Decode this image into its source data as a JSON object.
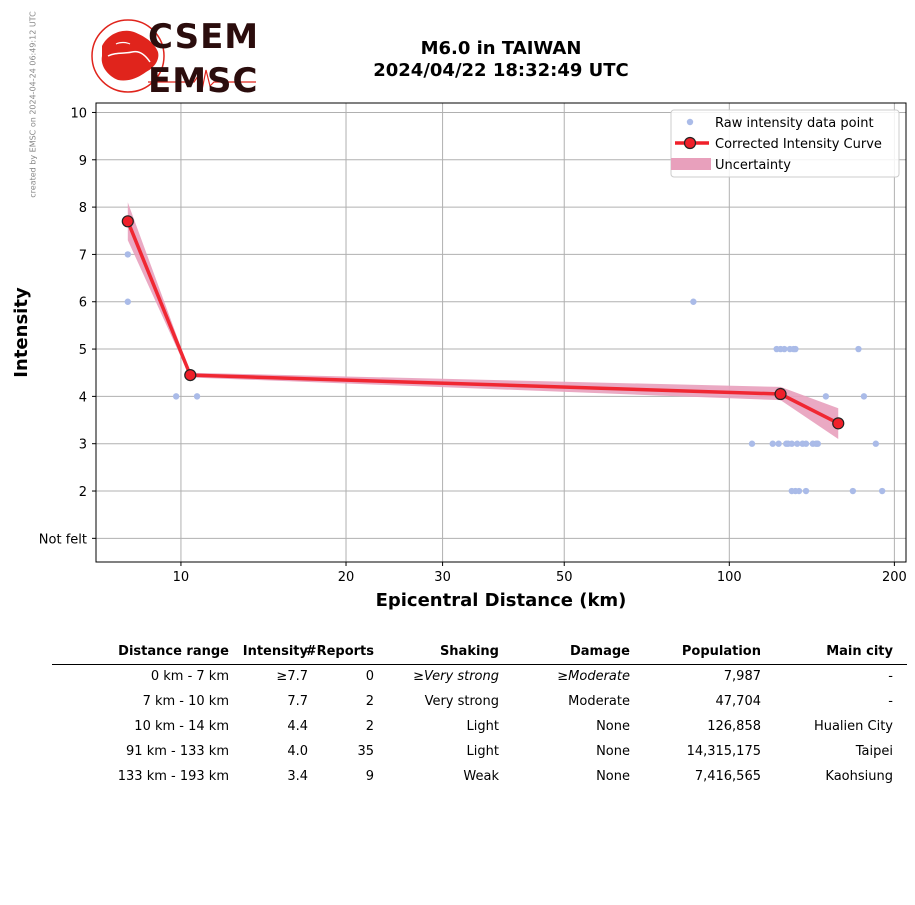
{
  "credit": "created by EMSC on 2024-04-24 06:49:12 UTC",
  "logo": {
    "line1": "CSEM",
    "line2": "EMSC"
  },
  "title": {
    "line1": "M6.0 in TAIWAN",
    "line2": "2024/04/22 18:32:49 UTC"
  },
  "colors": {
    "raw_points": "#aabbe8",
    "curve": "#f0202a",
    "uncertainty": "#e8a0bc",
    "logo_red": "#e0241c"
  },
  "chart_data": {
    "type": "scatter",
    "xlabel": "Epicentral Distance (km)",
    "ylabel": "Intensity",
    "x_scale": "log",
    "xlim": [
      7.0,
      210
    ],
    "ylim": [
      0.5,
      10.2
    ],
    "xticks": [
      10,
      20,
      30,
      50,
      100,
      200
    ],
    "xtick_labels": [
      "10",
      "20",
      "30",
      "50",
      "100",
      "200"
    ],
    "yticks": [
      1,
      2,
      3,
      4,
      5,
      6,
      7,
      8,
      9,
      10
    ],
    "ytick_labels": [
      "Not felt",
      "2",
      "3",
      "4",
      "5",
      "6",
      "7",
      "8",
      "9",
      "10"
    ],
    "grid": true,
    "legend_position": "top-right",
    "legend": [
      "Raw intensity data point",
      "Corrected Intensity Curve",
      "Uncertainty"
    ],
    "raw_points": [
      [
        8.0,
        7
      ],
      [
        8.0,
        6
      ],
      [
        9.8,
        4
      ],
      [
        10.7,
        4
      ],
      [
        86,
        6
      ],
      [
        122,
        5
      ],
      [
        124,
        5
      ],
      [
        126,
        5
      ],
      [
        129,
        5
      ],
      [
        131,
        5
      ],
      [
        132,
        5
      ],
      [
        172,
        5
      ],
      [
        150,
        4
      ],
      [
        176,
        4
      ],
      [
        110,
        3
      ],
      [
        120,
        3
      ],
      [
        123,
        3
      ],
      [
        127,
        3
      ],
      [
        128,
        3
      ],
      [
        130,
        3
      ],
      [
        133,
        3
      ],
      [
        136,
        3
      ],
      [
        138,
        3
      ],
      [
        142,
        3
      ],
      [
        144,
        3
      ],
      [
        145,
        3
      ],
      [
        185,
        3
      ],
      [
        130,
        2
      ],
      [
        132,
        2
      ],
      [
        134,
        2
      ],
      [
        138,
        2
      ],
      [
        168,
        2
      ],
      [
        190,
        2
      ]
    ],
    "curve": {
      "x": [
        8.0,
        10.4,
        124,
        158
      ],
      "y": [
        7.7,
        4.45,
        4.05,
        3.43
      ]
    },
    "uncertainty": {
      "x": [
        8.0,
        10.4,
        124,
        158
      ],
      "upper": [
        8.1,
        4.5,
        4.2,
        3.75
      ],
      "lower": [
        7.3,
        4.4,
        3.92,
        3.1
      ]
    }
  },
  "table": {
    "headers": [
      "Distance range",
      "Intensity",
      "#Reports",
      "Shaking",
      "Damage",
      "Population",
      "Main city"
    ],
    "rows": [
      {
        "dist": "0 km -    7 km",
        "int": "≥7.7",
        "rep": "0",
        "shake_prefix": "≥",
        "shake": "Very strong",
        "dmg_prefix": "≥",
        "dmg": "Moderate",
        "pop": "7,987",
        "city": "-"
      },
      {
        "dist": "7 km -   10 km",
        "int": "7.7",
        "rep": "2",
        "shake_prefix": "",
        "shake": "Very strong",
        "dmg_prefix": "",
        "dmg": "Moderate",
        "pop": "47,704",
        "city": "-"
      },
      {
        "dist": "10 km -   14 km",
        "int": "4.4",
        "rep": "2",
        "shake_prefix": "",
        "shake": "Light",
        "dmg_prefix": "",
        "dmg": "None",
        "pop": "126,858",
        "city": "Hualien City"
      },
      {
        "dist": "91 km -  133 km",
        "int": "4.0",
        "rep": "35",
        "shake_prefix": "",
        "shake": "Light",
        "dmg_prefix": "",
        "dmg": "None",
        "pop": "14,315,175",
        "city": "Taipei"
      },
      {
        "dist": "133 km -  193 km",
        "int": "3.4",
        "rep": "9",
        "shake_prefix": "",
        "shake": "Weak",
        "dmg_prefix": "",
        "dmg": "None",
        "pop": "7,416,565",
        "city": "Kaohsiung"
      }
    ]
  }
}
